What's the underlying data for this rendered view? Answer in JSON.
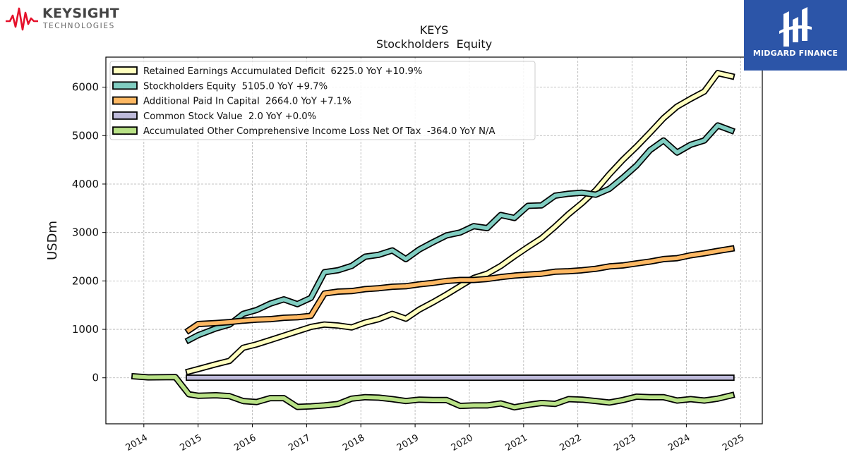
{
  "branding": {
    "left_logo_name": "KEYSIGHT",
    "left_logo_sub": "TECHNOLOGIES",
    "right_logo_name": "MIDGARD FINANCE",
    "left_logo_color": "#e5112b",
    "right_logo_bg": "#2c55a8"
  },
  "chart_data": {
    "type": "line",
    "title": "KEYS",
    "subtitle": "Stockholders  Equity",
    "ylabel": "USDm",
    "xlabel": "",
    "x_range": [
      2013.3,
      2025.4
    ],
    "ylim": [
      -950,
      6620
    ],
    "x_ticks": [
      "2014",
      "2015",
      "2016",
      "2017",
      "2018",
      "2019",
      "2020",
      "2021",
      "2022",
      "2023",
      "2024",
      "2025"
    ],
    "y_ticks": [
      "0",
      "1000",
      "2000",
      "3000",
      "4000",
      "5000",
      "6000"
    ],
    "grid": true,
    "legend_position": "top-left",
    "series": [
      {
        "name": "Retained Earnings Accumulated Deficit  6225.0 YoY +10.9%",
        "color": "#ffffbf",
        "x": [
          2014.83,
          2015.0,
          2015.33,
          2015.58,
          2015.83,
          2016.08,
          2016.33,
          2016.58,
          2016.83,
          2017.08,
          2017.33,
          2017.58,
          2017.83,
          2018.08,
          2018.33,
          2018.58,
          2018.83,
          2019.08,
          2019.33,
          2019.58,
          2019.83,
          2020.08,
          2020.33,
          2020.58,
          2020.83,
          2021.08,
          2021.33,
          2021.58,
          2021.83,
          2022.08,
          2022.33,
          2022.58,
          2022.83,
          2023.08,
          2023.33,
          2023.58,
          2023.83,
          2024.08,
          2024.33,
          2024.58,
          2024.83
        ],
        "values": [
          130,
          180,
          280,
          350,
          620,
          690,
          780,
          870,
          960,
          1050,
          1100,
          1080,
          1040,
          1140,
          1210,
          1320,
          1220,
          1410,
          1560,
          1720,
          1890,
          2060,
          2150,
          2310,
          2510,
          2700,
          2880,
          3120,
          3380,
          3610,
          3870,
          4200,
          4500,
          4770,
          5060,
          5360,
          5600,
          5760,
          5910,
          6290,
          6225
        ]
      },
      {
        "name": "Stockholders Equity  5105.0 YoY +9.7%",
        "color": "#80cdc1",
        "x": [
          2014.83,
          2015.0,
          2015.33,
          2015.58,
          2015.83,
          2016.08,
          2016.33,
          2016.58,
          2016.83,
          2017.08,
          2017.33,
          2017.58,
          2017.83,
          2018.08,
          2018.33,
          2018.58,
          2018.83,
          2019.08,
          2019.33,
          2019.58,
          2019.83,
          2020.08,
          2020.33,
          2020.58,
          2020.83,
          2021.08,
          2021.33,
          2021.58,
          2021.83,
          2022.08,
          2022.33,
          2022.58,
          2022.83,
          2023.08,
          2023.33,
          2023.58,
          2023.83,
          2024.08,
          2024.33,
          2024.58,
          2024.83
        ],
        "values": [
          780,
          880,
          1020,
          1100,
          1320,
          1400,
          1530,
          1620,
          1520,
          1650,
          2180,
          2220,
          2310,
          2500,
          2540,
          2630,
          2450,
          2650,
          2800,
          2940,
          3000,
          3130,
          3090,
          3360,
          3300,
          3550,
          3560,
          3760,
          3800,
          3820,
          3780,
          3900,
          4130,
          4380,
          4700,
          4900,
          4650,
          4810,
          4900,
          5210,
          5105
        ]
      },
      {
        "name": "Additional Paid In Capital  2664.0 YoY +7.1%",
        "color": "#fdb863",
        "x": [
          2014.83,
          2015.0,
          2015.33,
          2015.58,
          2015.83,
          2016.08,
          2016.33,
          2016.58,
          2016.83,
          2017.08,
          2017.33,
          2017.58,
          2017.83,
          2018.08,
          2018.33,
          2018.58,
          2018.83,
          2019.08,
          2019.33,
          2019.58,
          2019.83,
          2020.08,
          2020.33,
          2020.58,
          2020.83,
          2021.08,
          2021.33,
          2021.58,
          2021.83,
          2022.08,
          2022.33,
          2022.58,
          2022.83,
          2023.08,
          2023.33,
          2023.58,
          2023.83,
          2024.08,
          2024.33,
          2024.58,
          2024.83
        ],
        "values": [
          980,
          1110,
          1130,
          1150,
          1180,
          1200,
          1210,
          1240,
          1250,
          1280,
          1740,
          1780,
          1790,
          1830,
          1850,
          1880,
          1890,
          1930,
          1960,
          2000,
          2020,
          2020,
          2040,
          2080,
          2110,
          2130,
          2150,
          2190,
          2200,
          2220,
          2250,
          2300,
          2320,
          2360,
          2400,
          2450,
          2470,
          2530,
          2570,
          2620,
          2664
        ]
      },
      {
        "name": "Common Stock Value  2.0 YoY +0.0%",
        "color": "#bebada",
        "x": [
          2014.83,
          2024.83
        ],
        "values": [
          2,
          2
        ]
      },
      {
        "name": "Accumulated Other Comprehensive Income Loss Net Of Tax  -364.0 YoY N/A",
        "color": "#b8e186",
        "x": [
          2013.83,
          2014.08,
          2014.58,
          2014.83,
          2015.0,
          2015.33,
          2015.58,
          2015.83,
          2016.08,
          2016.33,
          2016.58,
          2016.83,
          2017.08,
          2017.33,
          2017.58,
          2017.83,
          2018.08,
          2018.33,
          2018.58,
          2018.83,
          2019.08,
          2019.33,
          2019.58,
          2019.83,
          2020.08,
          2020.33,
          2020.58,
          2020.83,
          2021.08,
          2021.33,
          2021.58,
          2021.83,
          2022.08,
          2022.33,
          2022.58,
          2022.83,
          2023.08,
          2023.33,
          2023.58,
          2023.83,
          2024.08,
          2024.33,
          2024.58,
          2024.83
        ],
        "values": [
          30,
          10,
          15,
          -340,
          -370,
          -360,
          -380,
          -480,
          -500,
          -420,
          -420,
          -600,
          -590,
          -570,
          -540,
          -430,
          -400,
          -410,
          -440,
          -480,
          -450,
          -460,
          -460,
          -580,
          -570,
          -570,
          -530,
          -610,
          -560,
          -520,
          -540,
          -440,
          -450,
          -480,
          -510,
          -460,
          -390,
          -400,
          -400,
          -470,
          -440,
          -470,
          -430,
          -364
        ]
      }
    ]
  }
}
